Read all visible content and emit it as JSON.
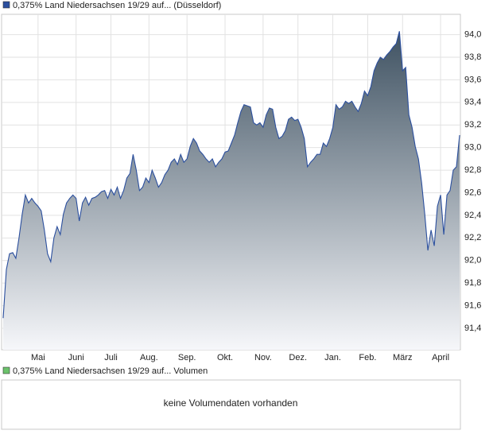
{
  "chart_data": {
    "type": "area",
    "series": [
      {
        "name": "0,375% Land Niedersachsen 19/29 auf... (Düsseldorf)",
        "color": "#2b4f9e",
        "values": [
          91.49,
          91.92,
          92.06,
          92.07,
          92.02,
          92.2,
          92.41,
          92.58,
          92.51,
          92.55,
          92.51,
          92.48,
          92.44,
          92.27,
          92.06,
          91.99,
          92.2,
          92.3,
          92.23,
          92.41,
          92.51,
          92.55,
          92.58,
          92.55,
          92.35,
          92.51,
          92.56,
          92.49,
          92.55,
          92.56,
          92.58,
          92.61,
          92.62,
          92.55,
          92.63,
          92.58,
          92.65,
          92.55,
          92.62,
          92.73,
          92.77,
          92.94,
          92.8,
          92.62,
          92.65,
          92.73,
          92.69,
          92.8,
          92.73,
          92.65,
          92.69,
          92.76,
          92.8,
          92.87,
          92.9,
          92.85,
          92.94,
          92.87,
          92.9,
          93.01,
          93.08,
          93.04,
          92.97,
          92.94,
          92.9,
          92.87,
          92.9,
          92.83,
          92.87,
          92.9,
          92.96,
          92.97,
          93.04,
          93.11,
          93.22,
          93.32,
          93.38,
          93.37,
          93.36,
          93.22,
          93.2,
          93.22,
          93.18,
          93.29,
          93.35,
          93.34,
          93.18,
          93.08,
          93.1,
          93.15,
          93.25,
          93.27,
          93.24,
          93.25,
          93.18,
          93.08,
          92.83,
          92.87,
          92.9,
          92.94,
          92.94,
          93.04,
          93.01,
          93.08,
          93.18,
          93.38,
          93.34,
          93.36,
          93.41,
          93.39,
          93.41,
          93.36,
          93.32,
          93.39,
          93.5,
          93.46,
          93.54,
          93.68,
          93.75,
          93.8,
          93.78,
          93.82,
          93.85,
          93.89,
          93.92,
          94.03,
          93.68,
          93.71,
          93.29,
          93.18,
          93.01,
          92.9,
          92.69,
          92.41,
          92.09,
          92.27,
          92.13,
          92.48,
          92.58,
          92.23,
          92.58,
          92.62,
          92.8,
          92.83,
          93.11
        ]
      }
    ],
    "ylim": [
      91.21,
      94.18
    ],
    "yticks": [
      {
        "value": 91.4,
        "label": "91,4"
      },
      {
        "value": 91.6,
        "label": "91,6"
      },
      {
        "value": 91.8,
        "label": "91,8"
      },
      {
        "value": 92.0,
        "label": "92,0"
      },
      {
        "value": 92.2,
        "label": "92,2"
      },
      {
        "value": 92.4,
        "label": "92,4"
      },
      {
        "value": 92.6,
        "label": "92,6"
      },
      {
        "value": 92.8,
        "label": "92,8"
      },
      {
        "value": 93.0,
        "label": "93,0"
      },
      {
        "value": 93.2,
        "label": "93,2"
      },
      {
        "value": 93.4,
        "label": "93,4"
      },
      {
        "value": 93.6,
        "label": "93,6"
      },
      {
        "value": 93.8,
        "label": "93,8"
      },
      {
        "value": 94.0,
        "label": "94,0"
      }
    ],
    "xticks": [
      {
        "value": 11,
        "label": "Mai"
      },
      {
        "value": 23,
        "label": "Juni"
      },
      {
        "value": 34,
        "label": "Juli"
      },
      {
        "value": 46,
        "label": "Aug."
      },
      {
        "value": 58,
        "label": "Sep."
      },
      {
        "value": 70,
        "label": "Okt."
      },
      {
        "value": 82,
        "label": "Nov."
      },
      {
        "value": 93,
        "label": "Dez."
      },
      {
        "value": 104,
        "label": "Jan."
      },
      {
        "value": 115,
        "label": "Feb."
      },
      {
        "value": 126,
        "label": "März"
      },
      {
        "value": 138,
        "label": "April"
      }
    ],
    "grid": true
  },
  "volume_panel": {
    "legend": "0,375% Land Niedersachsen 19/29 auf... Volumen",
    "legend_color": "#6cc36c",
    "message": "keine Volumendaten vorhanden"
  }
}
